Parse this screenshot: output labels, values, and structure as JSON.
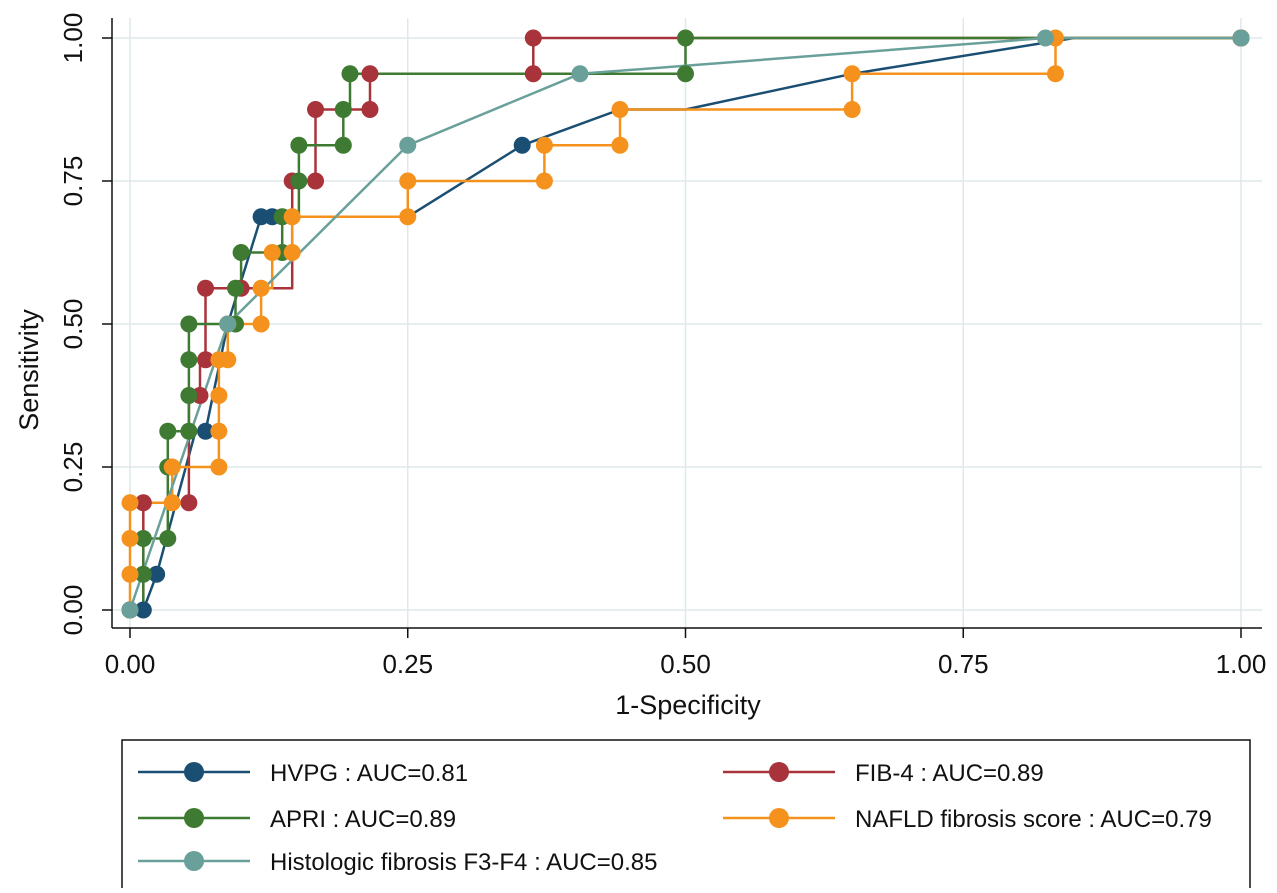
{
  "chart_data": {
    "type": "line",
    "xlabel": "1-Specificity",
    "ylabel": "Sensitivity",
    "xlim": [
      0,
      1
    ],
    "ylim": [
      0,
      1
    ],
    "x_ticks": [
      "0.00",
      "0.25",
      "0.50",
      "0.75",
      "1.00"
    ],
    "y_ticks": [
      "0.00",
      "0.25",
      "0.50",
      "0.75",
      "1.00"
    ],
    "grid": true,
    "legend_position": "bottom",
    "series": [
      {
        "name": "HVPG : AUC=0.81",
        "color": "#1a4f73",
        "x": [
          0,
          0.012,
          0.024,
          0.059,
          0.068,
          0.088,
          0.118,
          0.128,
          0.25,
          0.353,
          0.441,
          0.5,
          0.65,
          0.85,
          1.0
        ],
        "y": [
          0,
          0,
          0.0625,
          0.3125,
          0.3125,
          0.5,
          0.6875,
          0.6875,
          0.6875,
          0.8125,
          0.875,
          0.875,
          0.9375,
          1.0,
          1.0
        ],
        "markers": [
          [
            0,
            0
          ],
          [
            0.012,
            0
          ],
          [
            0.024,
            0.0625
          ],
          [
            0.068,
            0.3125
          ],
          [
            0.088,
            0.5
          ],
          [
            0.118,
            0.6875
          ],
          [
            0.128,
            0.6875
          ],
          [
            0.353,
            0.8125
          ],
          [
            1.0,
            1.0
          ]
        ]
      },
      {
        "name": "FIB-4 : AUC=0.89",
        "color": "#a8333a",
        "x": [
          0,
          0.012,
          0.012,
          0.053,
          0.053,
          0.063,
          0.063,
          0.068,
          0.068,
          0.146,
          0.146,
          0.167,
          0.167,
          0.216,
          0.216,
          0.363,
          0.363,
          1.0
        ],
        "y": [
          0,
          0,
          0.1875,
          0.1875,
          0.375,
          0.375,
          0.4375,
          0.4375,
          0.5625,
          0.5625,
          0.75,
          0.75,
          0.875,
          0.875,
          0.9375,
          0.9375,
          1.0,
          1.0
        ],
        "markers": [
          [
            0,
            0
          ],
          [
            0.012,
            0.1875
          ],
          [
            0.053,
            0.1875
          ],
          [
            0.063,
            0.375
          ],
          [
            0.068,
            0.4375
          ],
          [
            0.068,
            0.5625
          ],
          [
            0.1,
            0.5625
          ],
          [
            0.146,
            0.75
          ],
          [
            0.167,
            0.75
          ],
          [
            0.167,
            0.875
          ],
          [
            0.216,
            0.875
          ],
          [
            0.216,
            0.9375
          ],
          [
            0.363,
            0.9375
          ],
          [
            0.363,
            1.0
          ],
          [
            1.0,
            1.0
          ]
        ]
      },
      {
        "name": "APRI : AUC=0.89",
        "color": "#3f7a32",
        "x": [
          0,
          0.012,
          0.012,
          0.034,
          0.034,
          0.053,
          0.053,
          0.095,
          0.095,
          0.1,
          0.1,
          0.137,
          0.137,
          0.152,
          0.152,
          0.192,
          0.192,
          0.198,
          0.198,
          0.5,
          0.5,
          1.0
        ],
        "y": [
          0,
          0,
          0.125,
          0.125,
          0.3125,
          0.3125,
          0.5,
          0.5,
          0.5625,
          0.5625,
          0.625,
          0.625,
          0.6875,
          0.6875,
          0.8125,
          0.8125,
          0.875,
          0.875,
          0.9375,
          0.9375,
          1.0,
          1.0
        ],
        "markers": [
          [
            0,
            0
          ],
          [
            0.012,
            0.0625
          ],
          [
            0.012,
            0.125
          ],
          [
            0.034,
            0.125
          ],
          [
            0.034,
            0.25
          ],
          [
            0.034,
            0.3125
          ],
          [
            0.053,
            0.3125
          ],
          [
            0.053,
            0.375
          ],
          [
            0.053,
            0.4375
          ],
          [
            0.053,
            0.5
          ],
          [
            0.095,
            0.5
          ],
          [
            0.095,
            0.5625
          ],
          [
            0.1,
            0.625
          ],
          [
            0.137,
            0.625
          ],
          [
            0.137,
            0.6875
          ],
          [
            0.152,
            0.75
          ],
          [
            0.152,
            0.8125
          ],
          [
            0.192,
            0.8125
          ],
          [
            0.192,
            0.875
          ],
          [
            0.198,
            0.9375
          ],
          [
            0.5,
            0.9375
          ],
          [
            0.5,
            1.0
          ],
          [
            1.0,
            1.0
          ]
        ]
      },
      {
        "name": "NAFLD fibrosis score : AUC=0.79",
        "color": "#f5921e",
        "x": [
          0,
          0,
          0.038,
          0.038,
          0.08,
          0.08,
          0.088,
          0.088,
          0.118,
          0.118,
          0.128,
          0.128,
          0.146,
          0.146,
          0.25,
          0.25,
          0.373,
          0.373,
          0.441,
          0.441,
          0.65,
          0.65,
          0.833,
          0.833,
          1.0
        ],
        "y": [
          0,
          0.1875,
          0.1875,
          0.25,
          0.25,
          0.4375,
          0.4375,
          0.5,
          0.5,
          0.5625,
          0.5625,
          0.625,
          0.625,
          0.6875,
          0.6875,
          0.75,
          0.75,
          0.8125,
          0.8125,
          0.875,
          0.875,
          0.9375,
          0.9375,
          1.0,
          1.0
        ],
        "markers": [
          [
            0,
            0.0625
          ],
          [
            0,
            0.125
          ],
          [
            0,
            0.1875
          ],
          [
            0.038,
            0.1875
          ],
          [
            0.038,
            0.25
          ],
          [
            0.08,
            0.25
          ],
          [
            0.08,
            0.3125
          ],
          [
            0.08,
            0.375
          ],
          [
            0.08,
            0.4375
          ],
          [
            0.088,
            0.4375
          ],
          [
            0.088,
            0.5
          ],
          [
            0.118,
            0.5
          ],
          [
            0.118,
            0.5625
          ],
          [
            0.128,
            0.625
          ],
          [
            0.146,
            0.625
          ],
          [
            0.146,
            0.6875
          ],
          [
            0.25,
            0.6875
          ],
          [
            0.25,
            0.75
          ],
          [
            0.373,
            0.75
          ],
          [
            0.373,
            0.8125
          ],
          [
            0.441,
            0.8125
          ],
          [
            0.441,
            0.875
          ],
          [
            0.65,
            0.875
          ],
          [
            0.65,
            0.9375
          ],
          [
            0.833,
            0.9375
          ],
          [
            0.833,
            1.0
          ],
          [
            1.0,
            1.0
          ]
        ]
      },
      {
        "name": "Histologic fibrosis F3-F4 : AUC=0.85",
        "color": "#6aa09a",
        "x": [
          0,
          0.088,
          0.25,
          0.405,
          0.824,
          1.0
        ],
        "y": [
          0,
          0.5,
          0.8125,
          0.9375,
          1.0,
          1.0
        ],
        "markers": [
          [
            0,
            0
          ],
          [
            0.088,
            0.5
          ],
          [
            0.25,
            0.8125
          ],
          [
            0.405,
            0.9375
          ],
          [
            0.824,
            1.0
          ],
          [
            1.0,
            1.0
          ]
        ]
      }
    ]
  }
}
